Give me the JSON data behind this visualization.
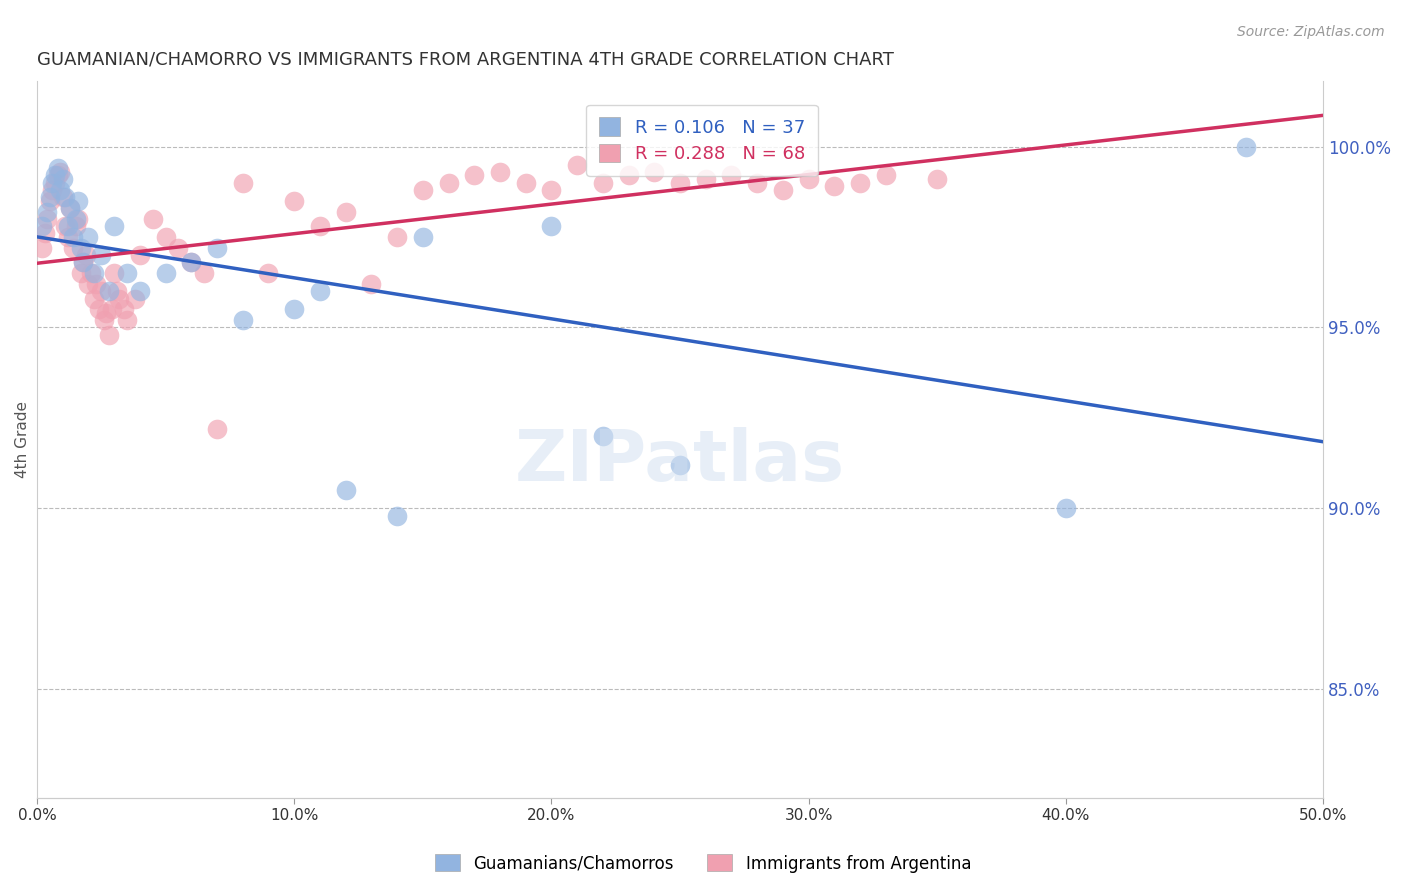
{
  "title": "GUAMANIAN/CHAMORRO VS IMMIGRANTS FROM ARGENTINA 4TH GRADE CORRELATION CHART",
  "source": "Source: ZipAtlas.com",
  "xlabel_vals": [
    0.0,
    10.0,
    20.0,
    30.0,
    40.0,
    50.0
  ],
  "ylabel_vals": [
    85.0,
    90.0,
    95.0,
    100.0
  ],
  "xlim": [
    0.0,
    50.0
  ],
  "ylim": [
    82.0,
    101.8
  ],
  "blue_R": 0.106,
  "blue_N": 37,
  "pink_R": 0.288,
  "pink_N": 68,
  "blue_color": "#92b4e0",
  "pink_color": "#f0a0b0",
  "blue_line_color": "#3060c0",
  "pink_line_color": "#d03060",
  "legend_label_blue": "Guamanians/Chamorros",
  "legend_label_pink": "Immigrants from Argentina",
  "ylabel": "4th Grade",
  "blue_scatter_x": [
    0.2,
    0.4,
    0.5,
    0.6,
    0.7,
    0.8,
    0.9,
    1.0,
    1.1,
    1.2,
    1.3,
    1.4,
    1.5,
    1.6,
    1.7,
    1.8,
    2.0,
    2.2,
    2.5,
    2.8,
    3.0,
    3.5,
    4.0,
    5.0,
    6.0,
    7.0,
    8.0,
    10.0,
    11.0,
    12.0,
    14.0,
    15.0,
    20.0,
    22.0,
    25.0,
    40.0,
    47.0
  ],
  "blue_scatter_y": [
    97.8,
    98.2,
    98.6,
    99.0,
    99.2,
    99.4,
    98.8,
    99.1,
    98.6,
    97.8,
    98.3,
    97.5,
    98.0,
    98.5,
    97.2,
    96.8,
    97.5,
    96.5,
    97.0,
    96.0,
    97.8,
    96.5,
    96.0,
    96.5,
    96.8,
    97.2,
    95.2,
    95.5,
    96.0,
    90.5,
    89.8,
    97.5,
    97.8,
    92.0,
    91.2,
    90.0,
    100.0
  ],
  "pink_scatter_x": [
    0.2,
    0.3,
    0.4,
    0.5,
    0.6,
    0.7,
    0.8,
    0.9,
    1.0,
    1.1,
    1.2,
    1.3,
    1.4,
    1.5,
    1.6,
    1.7,
    1.8,
    1.9,
    2.0,
    2.1,
    2.2,
    2.3,
    2.4,
    2.5,
    2.6,
    2.7,
    2.8,
    2.9,
    3.0,
    3.1,
    3.2,
    3.4,
    3.5,
    3.8,
    4.0,
    4.5,
    5.0,
    5.5,
    6.0,
    6.5,
    7.0,
    8.0,
    9.0,
    10.0,
    11.0,
    12.0,
    13.0,
    14.0,
    15.0,
    16.0,
    17.0,
    18.0,
    19.0,
    20.0,
    21.0,
    22.0,
    23.0,
    24.0,
    25.0,
    26.0,
    27.0,
    28.0,
    29.0,
    30.0,
    31.0,
    32.0,
    33.0,
    35.0
  ],
  "pink_scatter_y": [
    97.2,
    97.6,
    98.0,
    98.5,
    98.8,
    99.0,
    99.2,
    99.3,
    98.6,
    97.8,
    97.5,
    98.3,
    97.2,
    97.8,
    98.0,
    96.5,
    96.8,
    97.0,
    96.2,
    96.5,
    95.8,
    96.2,
    95.5,
    96.0,
    95.2,
    95.4,
    94.8,
    95.5,
    96.5,
    96.0,
    95.8,
    95.5,
    95.2,
    95.8,
    97.0,
    98.0,
    97.5,
    97.2,
    96.8,
    96.5,
    92.2,
    99.0,
    96.5,
    98.5,
    97.8,
    98.2,
    96.2,
    97.5,
    98.8,
    99.0,
    99.2,
    99.3,
    99.0,
    98.8,
    99.5,
    99.0,
    99.2,
    99.3,
    99.0,
    99.1,
    99.2,
    99.0,
    98.8,
    99.1,
    98.9,
    99.0,
    99.2,
    99.1
  ]
}
